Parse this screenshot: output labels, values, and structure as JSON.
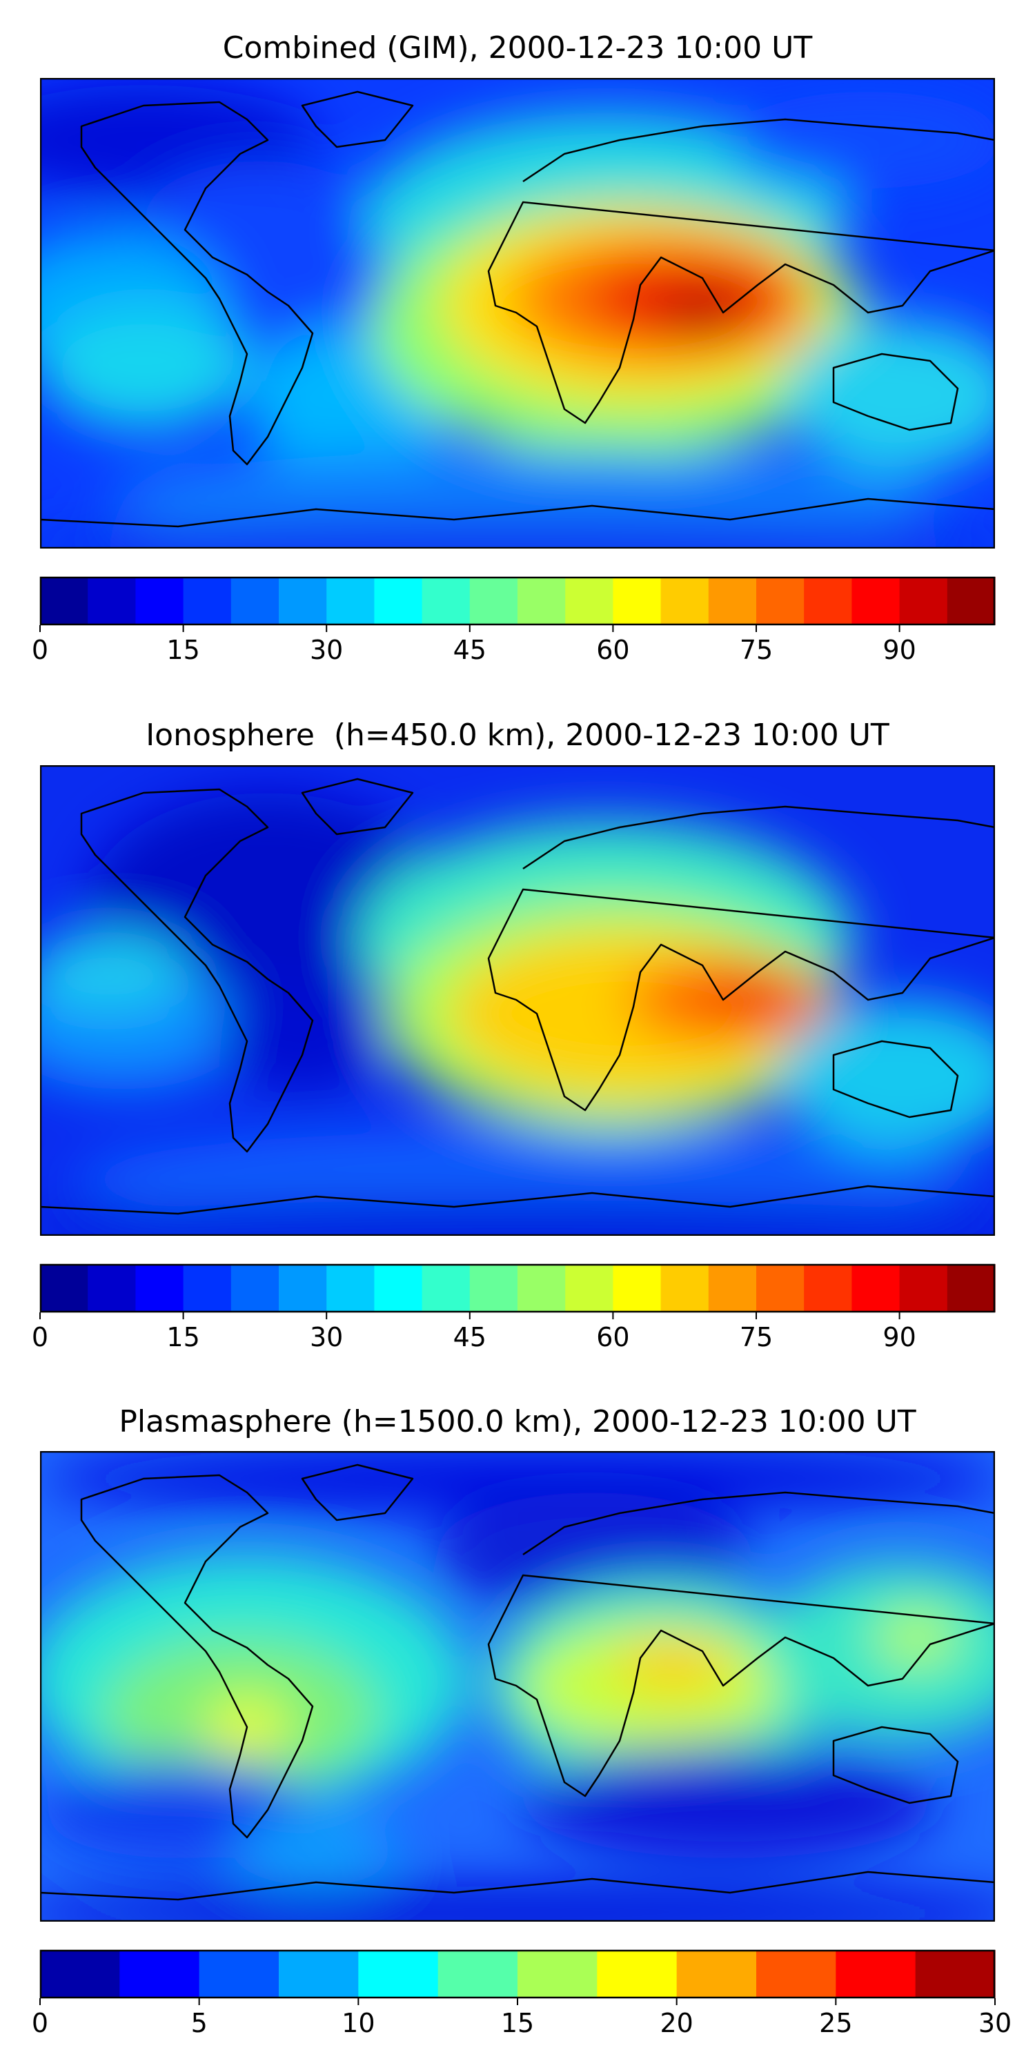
{
  "panels": [
    {
      "title": "Combined (GIM), 2000-12-23 10:00 UT",
      "colorbar": {
        "min": 0,
        "max": 100,
        "step": 5,
        "ticks": [
          0,
          15,
          30,
          45,
          60,
          75,
          90
        ]
      }
    },
    {
      "title": "Ionosphere  (h=450.0 km), 2000-12-23 10:00 UT",
      "colorbar": {
        "min": 0,
        "max": 100,
        "step": 5,
        "ticks": [
          0,
          15,
          30,
          45,
          60,
          75,
          90
        ]
      }
    },
    {
      "title": "Plasmasphere (h=1500.0 km), 2000-12-23 10:00 UT",
      "colorbar": {
        "min": 0,
        "max": 30,
        "step": 2.5,
        "ticks": [
          0,
          5,
          10,
          15,
          20,
          25,
          30
        ]
      }
    }
  ],
  "colormap": "jet"
}
